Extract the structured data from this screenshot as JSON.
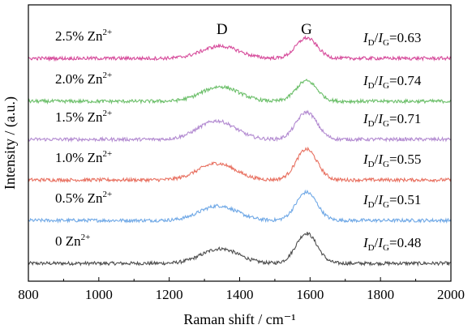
{
  "chart_data": {
    "type": "line",
    "title": "",
    "xlabel": "Raman shift / cm⁻¹",
    "ylabel": "Intensity / (a.u.)",
    "xlim": [
      800,
      2000
    ],
    "xticks": [
      "800",
      "1000",
      "1200",
      "1400",
      "1600",
      "1800",
      "2000"
    ],
    "yticks_shown": false,
    "grid": false,
    "peak_labels": [
      {
        "text": "D",
        "x": 1350
      },
      {
        "text": "G",
        "x": 1590
      }
    ],
    "series": [
      {
        "name": "0 Zn",
        "sup": "2+",
        "ratio_label": "I_D/I_G=0.48",
        "ratio": "0.48",
        "color": "#4d4d4d",
        "baseline": 0.0,
        "d_height": 0.3,
        "g_height": 0.62,
        "d_center": 1345,
        "g_center": 1590
      },
      {
        "name": "0.5% Zn",
        "sup": "2+",
        "ratio_label": "I_D/I_G=0.51",
        "ratio": "0.51",
        "color": "#6fa8e6",
        "baseline": 1.0,
        "d_height": 0.3,
        "g_height": 0.58,
        "d_center": 1340,
        "g_center": 1590
      },
      {
        "name": "1.0% Zn",
        "sup": "2+",
        "ratio_label": "I_D/I_G=0.55",
        "ratio": "0.55",
        "color": "#e87060",
        "baseline": 2.0,
        "d_height": 0.34,
        "g_height": 0.63,
        "d_center": 1335,
        "g_center": 1590
      },
      {
        "name": "1.5% Zn",
        "sup": "2+",
        "ratio_label": "I_D/I_G=0.71",
        "ratio": "0.71",
        "color": "#b38bd1",
        "baseline": 3.0,
        "d_height": 0.38,
        "g_height": 0.56,
        "d_center": 1335,
        "g_center": 1590
      },
      {
        "name": "2.0% Zn",
        "sup": "2+",
        "ratio_label": "I_D/I_G=0.74",
        "ratio": "0.74",
        "color": "#6cbf6a",
        "baseline": 4.0,
        "d_height": 0.3,
        "g_height": 0.42,
        "d_center": 1345,
        "g_center": 1590
      },
      {
        "name": "2.5% Zn",
        "sup": "2+",
        "ratio_label": "I_D/I_G=0.63",
        "ratio": "0.63",
        "color": "#d64b9b",
        "baseline": 5.0,
        "d_height": 0.25,
        "g_height": 0.42,
        "d_center": 1345,
        "g_center": 1590
      }
    ]
  }
}
